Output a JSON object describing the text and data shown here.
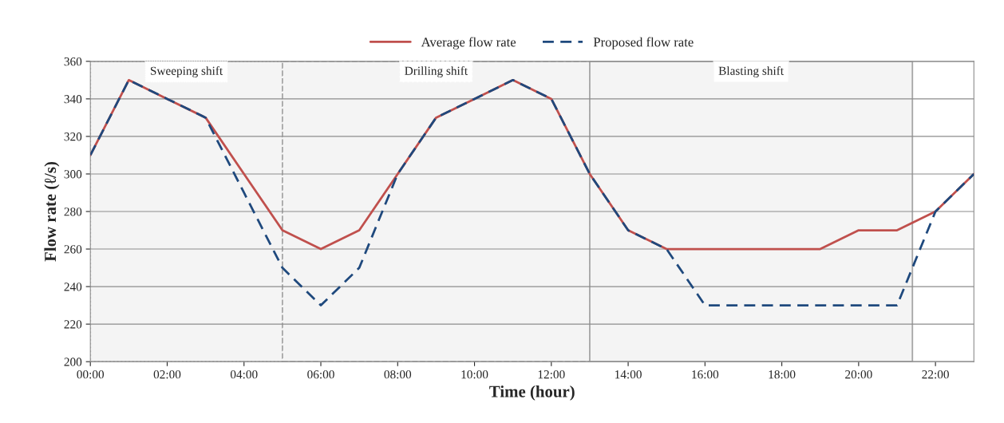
{
  "chart_data": {
    "type": "line",
    "xlabel": "Time (hour)",
    "ylabel": "Flow rate (ℓ/s)",
    "x": [
      0,
      1,
      2,
      3,
      4,
      5,
      6,
      7,
      8,
      9,
      10,
      11,
      12,
      13,
      14,
      15,
      16,
      17,
      18,
      19,
      20,
      21,
      22,
      23
    ],
    "series": [
      {
        "name": "Average flow rate",
        "color": "#c0504d",
        "line_style": "solid",
        "values": [
          310,
          350,
          340,
          330,
          300,
          270,
          260,
          270,
          300,
          330,
          340,
          350,
          340,
          300,
          270,
          260,
          260,
          260,
          260,
          260,
          270,
          270,
          280,
          300
        ]
      },
      {
        "name": "Proposed flow rate",
        "color": "#1f497d",
        "line_style": "dashed",
        "values": [
          310,
          350,
          340,
          330,
          290,
          250,
          230,
          250,
          300,
          330,
          340,
          350,
          340,
          300,
          270,
          260,
          230,
          230,
          230,
          230,
          230,
          230,
          280,
          300
        ]
      }
    ],
    "xlim": [
      0,
      23
    ],
    "xticks": [
      {
        "value": 0,
        "label": "00:00"
      },
      {
        "value": 2,
        "label": "02:00"
      },
      {
        "value": 4,
        "label": "04:00"
      },
      {
        "value": 6,
        "label": "06:00"
      },
      {
        "value": 8,
        "label": "08:00"
      },
      {
        "value": 10,
        "label": "10:00"
      },
      {
        "value": 12,
        "label": "12:00"
      },
      {
        "value": 14,
        "label": "14:00"
      },
      {
        "value": 16,
        "label": "16:00"
      },
      {
        "value": 18,
        "label": "18:00"
      },
      {
        "value": 20,
        "label": "20:00"
      },
      {
        "value": 22,
        "label": "22:00"
      }
    ],
    "ylim": [
      200,
      360
    ],
    "yticks": [
      200,
      220,
      240,
      260,
      280,
      300,
      320,
      340,
      360
    ],
    "bands": [
      {
        "axis": "x",
        "from": 0,
        "to": 5,
        "label": "Sweeping shift",
        "color": "#f4f4f4"
      },
      {
        "axis": "x",
        "from": 5,
        "to": 13,
        "label": "Drilling shift",
        "color": "#f4f4f4"
      },
      {
        "axis": "x",
        "from": 13,
        "to": 21.4,
        "label": "Blasting shift",
        "color": "#f4f4f4"
      }
    ],
    "grid": "y",
    "legend": "top",
    "marker": "none"
  }
}
